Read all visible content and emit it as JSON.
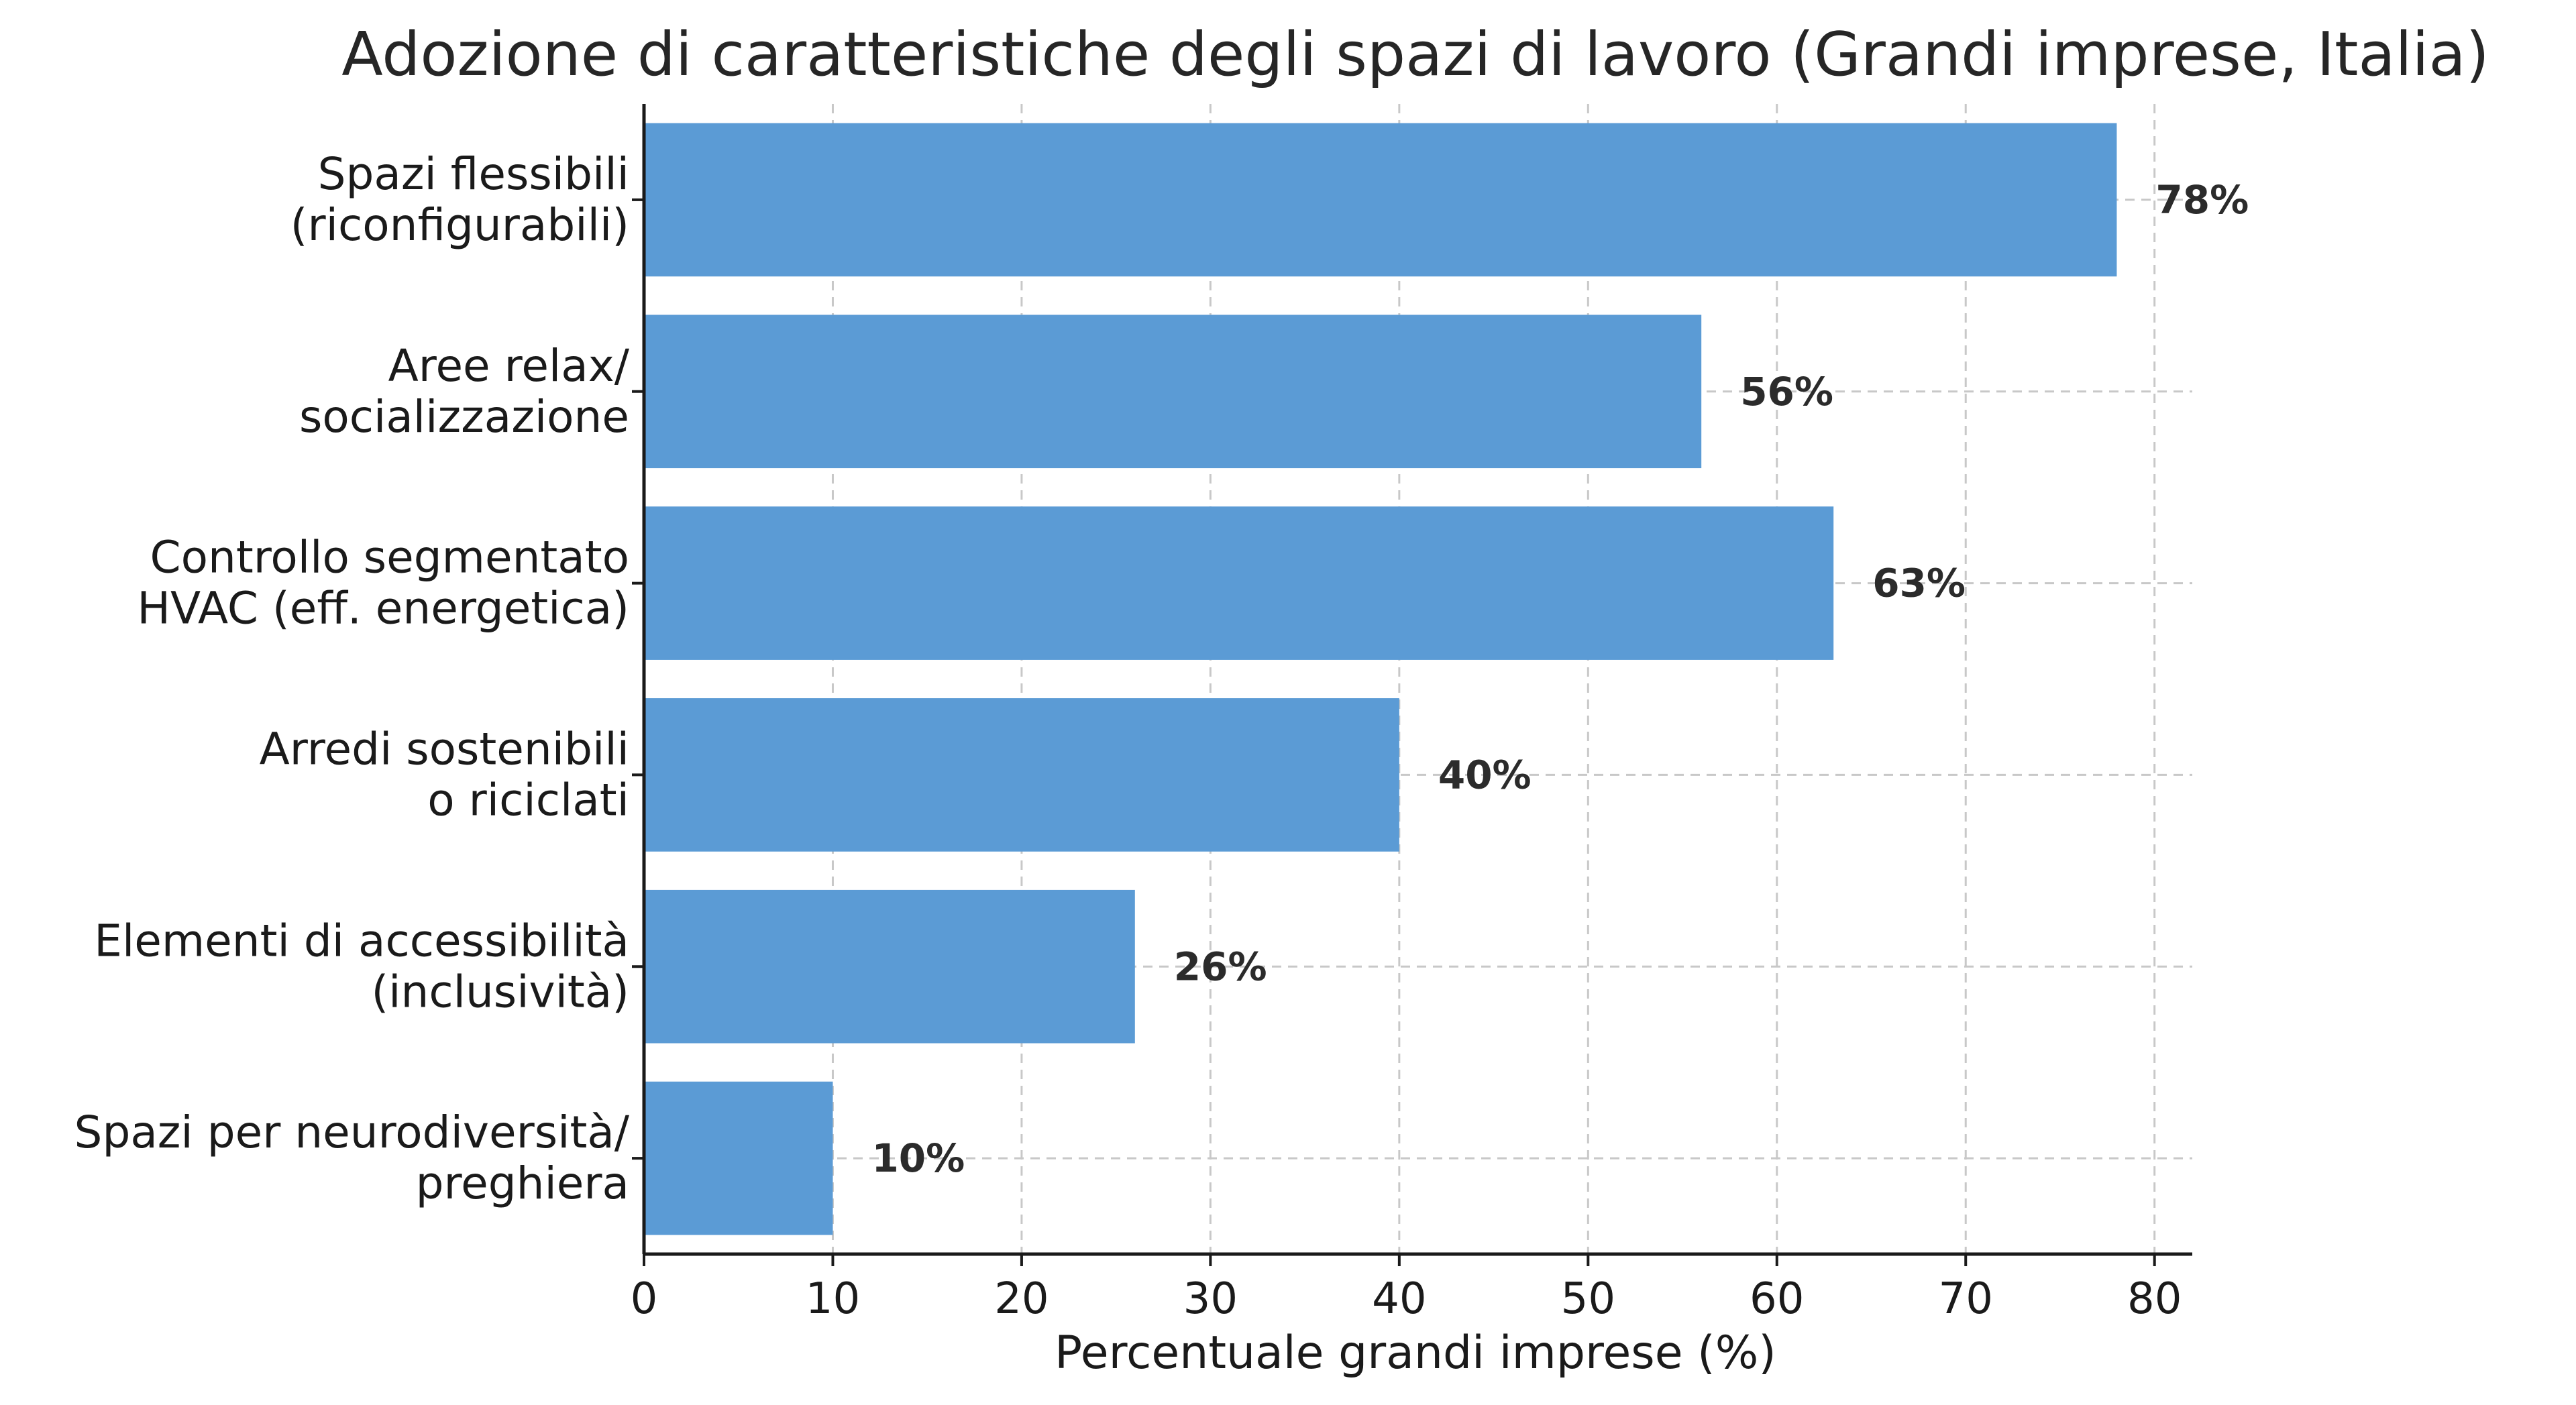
{
  "chart_data": {
    "type": "bar",
    "orientation": "horizontal",
    "title": "Adozione di caratteristiche degli spazi di lavoro (Grandi imprese, Italia)",
    "xlabel": "Percentuale grandi imprese (%)",
    "ylabel": "",
    "xlim": [
      0,
      82
    ],
    "xticks": [
      0,
      10,
      20,
      30,
      40,
      50,
      60,
      70,
      80
    ],
    "grid": true,
    "bar_color": "#5b9bd5",
    "categories": [
      [
        "Spazi flessibili",
        "(riconfigurabili)"
      ],
      [
        "Aree relax/",
        "socializzazione"
      ],
      [
        "Controllo segmentato",
        "HVAC (eff. energetica)"
      ],
      [
        "Arredi sostenibili",
        "o riciclati"
      ],
      [
        "Elementi di accessibilità",
        "(inclusività)"
      ],
      [
        "Spazi per neurodiversità/",
        "preghiera"
      ]
    ],
    "values": [
      78,
      56,
      63,
      40,
      26,
      10
    ],
    "value_labels": [
      "78%",
      "56%",
      "63%",
      "40%",
      "26%",
      "10%"
    ]
  }
}
